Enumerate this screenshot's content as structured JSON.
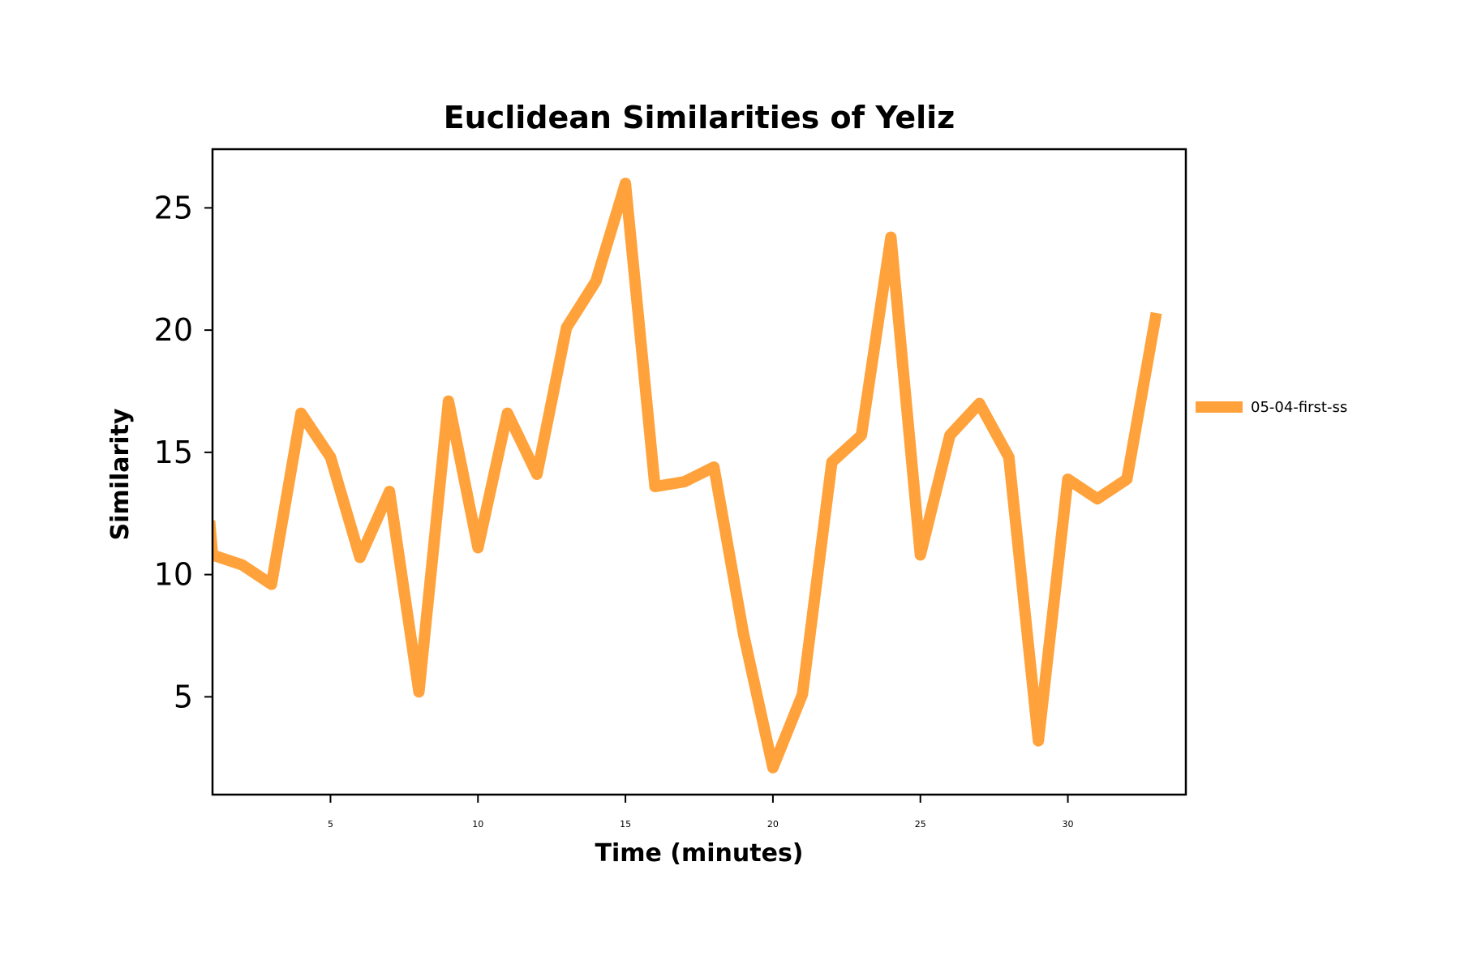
{
  "chart_data": {
    "type": "line",
    "title": "Euclidean Similarities of Yeliz",
    "xlabel": "Time (minutes)",
    "ylabel": "Similarity",
    "xlim": [
      1,
      34
    ],
    "ylim": [
      1,
      27.4
    ],
    "xticks": [
      5,
      10,
      15,
      20,
      25,
      30
    ],
    "yticks": [
      5,
      10,
      15,
      20,
      25
    ],
    "grid": false,
    "legend_position": "right",
    "series": [
      {
        "name": "05-04-first-ss",
        "color": "#ffa23b",
        "x": [
          1,
          2,
          3,
          4,
          5,
          6,
          7,
          8,
          9,
          10,
          11,
          12,
          13,
          14,
          15,
          16,
          17,
          18,
          19,
          20,
          21,
          22,
          23,
          24,
          25,
          26,
          27,
          28,
          29,
          30,
          31,
          32,
          33
        ],
        "y": [
          10.8,
          10.4,
          9.6,
          16.6,
          14.8,
          10.7,
          13.4,
          5.2,
          17.1,
          11.1,
          16.6,
          14.1,
          20.1,
          22.0,
          26.0,
          13.6,
          13.8,
          14.4,
          7.6,
          2.1,
          5.1,
          14.6,
          15.7,
          23.8,
          10.8,
          15.7,
          17.0,
          14.8,
          3.2,
          13.9,
          13.1,
          13.9,
          20.7
        ]
      }
    ]
  }
}
